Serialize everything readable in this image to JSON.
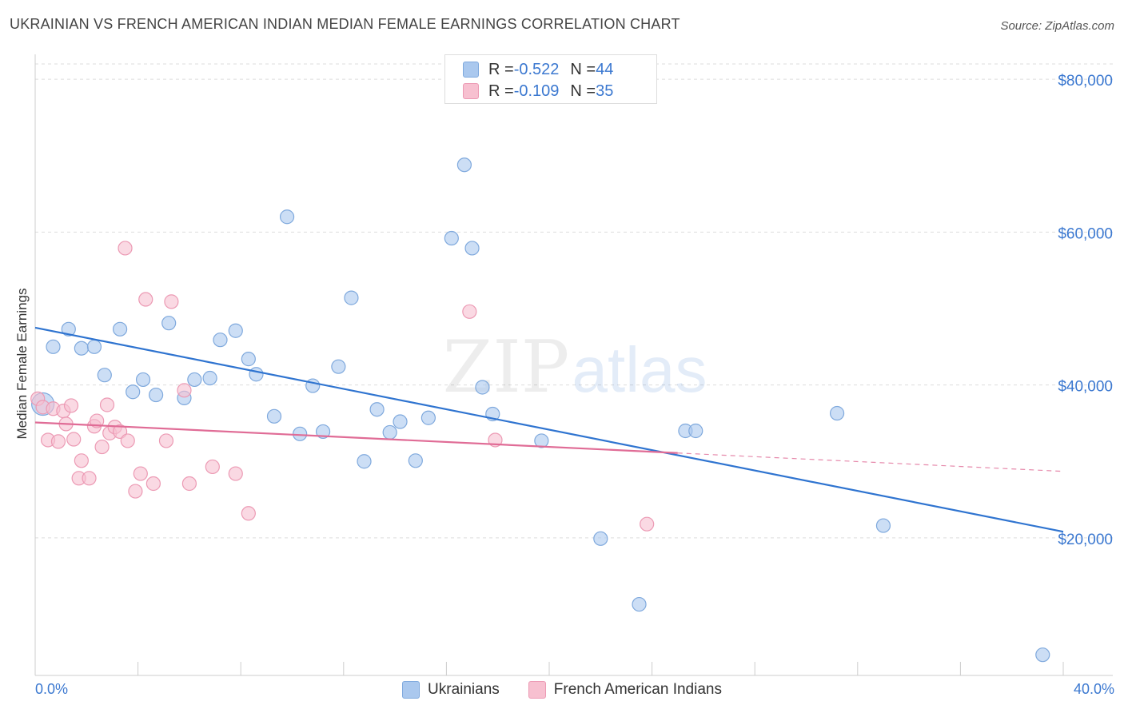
{
  "header": {
    "title": "UKRAINIAN VS FRENCH AMERICAN INDIAN MEDIAN FEMALE EARNINGS CORRELATION CHART",
    "source": "Source: ZipAtlas.com"
  },
  "watermark": {
    "part1": "ZIP",
    "part2": "atlas"
  },
  "legend_top": {
    "rows": [
      {
        "r_label": "R = ",
        "r_value": "-0.522",
        "n_label": "N = ",
        "n_value": "44"
      },
      {
        "r_label": "R = ",
        "r_value": "-0.109",
        "n_label": "N = ",
        "n_value": "35"
      }
    ]
  },
  "legend_bottom": {
    "items": [
      "Ukrainians",
      "French American Indians"
    ]
  },
  "colors": {
    "ukrainians_fill": "#aac8ee",
    "ukrainians_stroke": "#7fa9dd",
    "ukrainians_line": "#2f74d0",
    "french_fill": "#f7c0d0",
    "french_stroke": "#ec9ab4",
    "french_line": "#e06c96",
    "tick_text": "#3b78d0",
    "grid": "#dddddd"
  },
  "chart_data": {
    "type": "scatter",
    "title": "UKRAINIAN VS FRENCH AMERICAN INDIAN MEDIAN FEMALE EARNINGS CORRELATION CHART",
    "xlabel": "",
    "ylabel": "Median Female Earnings",
    "xlim": [
      0,
      40
    ],
    "ylim": [
      2000,
      82000
    ],
    "x_tick_labels": [
      "0.0%",
      "40.0%"
    ],
    "y_ticks": [
      20000,
      40000,
      60000,
      80000
    ],
    "y_tick_labels": [
      "$20,000",
      "$40,000",
      "$60,000",
      "$80,000"
    ],
    "grid": true,
    "legend_position": "top-center",
    "series": [
      {
        "name": "Ukrainians",
        "r": -0.522,
        "n": 44,
        "trend": {
          "x": [
            0,
            40
          ],
          "y": [
            47500,
            20800
          ]
        },
        "points": [
          [
            0.3,
            37500
          ],
          [
            0.7,
            45000
          ],
          [
            1.3,
            47300
          ],
          [
            1.8,
            44800
          ],
          [
            2.3,
            45000
          ],
          [
            2.7,
            41300
          ],
          [
            3.3,
            47300
          ],
          [
            3.8,
            39100
          ],
          [
            4.2,
            40700
          ],
          [
            4.7,
            38700
          ],
          [
            5.2,
            48100
          ],
          [
            5.8,
            38300
          ],
          [
            6.2,
            40700
          ],
          [
            6.8,
            40900
          ],
          [
            7.2,
            45900
          ],
          [
            7.8,
            47100
          ],
          [
            8.3,
            43400
          ],
          [
            8.6,
            41400
          ],
          [
            9.3,
            35900
          ],
          [
            9.8,
            62000
          ],
          [
            10.3,
            33600
          ],
          [
            10.8,
            39900
          ],
          [
            11.2,
            33900
          ],
          [
            11.8,
            42400
          ],
          [
            12.3,
            51400
          ],
          [
            12.8,
            30000
          ],
          [
            13.3,
            36800
          ],
          [
            13.8,
            33800
          ],
          [
            14.2,
            35200
          ],
          [
            14.8,
            30100
          ],
          [
            15.3,
            35700
          ],
          [
            16.2,
            59200
          ],
          [
            16.7,
            68800
          ],
          [
            17.0,
            57900
          ],
          [
            17.4,
            39700
          ],
          [
            17.8,
            36200
          ],
          [
            19.7,
            32700
          ],
          [
            22.0,
            19900
          ],
          [
            23.5,
            11300
          ],
          [
            25.3,
            34000
          ],
          [
            25.7,
            34000
          ],
          [
            31.2,
            36300
          ],
          [
            33.0,
            21600
          ],
          [
            39.2,
            4700
          ]
        ]
      },
      {
        "name": "French American Indians",
        "r": -0.109,
        "n": 35,
        "trend": {
          "x": [
            0,
            25.0
          ],
          "y": [
            35100,
            31100
          ]
        },
        "trend_dashed": {
          "x": [
            25.0,
            40
          ],
          "y": [
            31100,
            28700
          ]
        },
        "points": [
          [
            0.1,
            38200
          ],
          [
            0.3,
            37100
          ],
          [
            0.5,
            32800
          ],
          [
            0.7,
            36900
          ],
          [
            0.9,
            32600
          ],
          [
            1.1,
            36600
          ],
          [
            1.2,
            34900
          ],
          [
            1.4,
            37300
          ],
          [
            1.5,
            32900
          ],
          [
            1.7,
            27800
          ],
          [
            1.8,
            30100
          ],
          [
            2.1,
            27800
          ],
          [
            2.3,
            34600
          ],
          [
            2.4,
            35300
          ],
          [
            2.6,
            31900
          ],
          [
            2.8,
            37400
          ],
          [
            2.9,
            33700
          ],
          [
            3.1,
            34500
          ],
          [
            3.3,
            33900
          ],
          [
            3.5,
            57900
          ],
          [
            3.6,
            32700
          ],
          [
            3.9,
            26100
          ],
          [
            4.1,
            28400
          ],
          [
            4.3,
            51200
          ],
          [
            4.6,
            27100
          ],
          [
            5.1,
            32700
          ],
          [
            5.3,
            50900
          ],
          [
            5.8,
            39300
          ],
          [
            6.0,
            27100
          ],
          [
            6.9,
            29300
          ],
          [
            7.8,
            28400
          ],
          [
            8.3,
            23200
          ],
          [
            16.9,
            49600
          ],
          [
            17.9,
            32800
          ],
          [
            23.8,
            21800
          ]
        ]
      }
    ]
  }
}
